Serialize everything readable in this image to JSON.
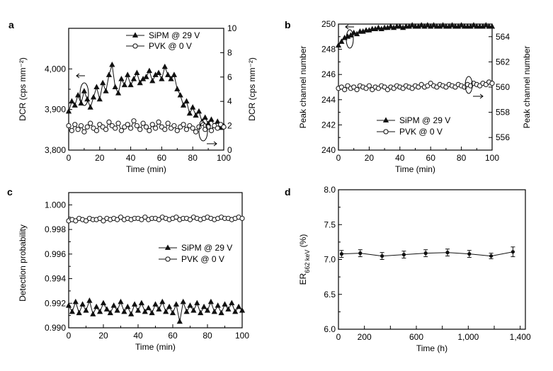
{
  "chart_data": [
    {
      "panel": "a",
      "type": "line",
      "xlabel": "Time (min)",
      "ylabel": "DCR (cps mm⁻²)",
      "ylabel_right": "DCR (cps mm⁻²)",
      "xlim": [
        0,
        100
      ],
      "ylim": [
        3800,
        4100
      ],
      "ylim_right": [
        0,
        10
      ],
      "xticks": [
        "0",
        "20",
        "40",
        "60",
        "80",
        "100"
      ],
      "yticks": [
        "3,800",
        "3,900",
        "4,000"
      ],
      "yticks_right": [
        "0",
        "2",
        "4",
        "6",
        "8",
        "10"
      ],
      "legend": [
        "SiPM @ 29 V",
        "PVK @ 0 V"
      ],
      "series": [
        {
          "name": "SiPM @ 29 V",
          "axis": "left",
          "marker": "triangle",
          "x": [
            0,
            2,
            4,
            6,
            8,
            10,
            12,
            14,
            16,
            18,
            20,
            22,
            24,
            26,
            28,
            30,
            32,
            34,
            36,
            38,
            40,
            42,
            44,
            46,
            48,
            50,
            52,
            54,
            56,
            58,
            60,
            62,
            64,
            66,
            68,
            70,
            72,
            74,
            76,
            78,
            80,
            82,
            84,
            86,
            88,
            90,
            92,
            94,
            96,
            98,
            100
          ],
          "y": [
            3895,
            3920,
            3910,
            3935,
            3915,
            3945,
            3925,
            3905,
            3930,
            3955,
            3925,
            3965,
            3945,
            3985,
            4010,
            3955,
            3940,
            3975,
            3960,
            3985,
            3960,
            3975,
            3990,
            3965,
            3975,
            3980,
            3995,
            3970,
            3985,
            3990,
            3975,
            4005,
            3985,
            3975,
            3985,
            3950,
            3935,
            3910,
            3920,
            3890,
            3905,
            3885,
            3895,
            3870,
            3880,
            3865,
            3875,
            3860,
            3870,
            3855,
            3860
          ]
        },
        {
          "name": "PVK @ 0 V",
          "axis": "right",
          "marker": "circle",
          "x": [
            0,
            2,
            4,
            6,
            8,
            10,
            12,
            14,
            16,
            18,
            20,
            22,
            24,
            26,
            28,
            30,
            32,
            34,
            36,
            38,
            40,
            42,
            44,
            46,
            48,
            50,
            52,
            54,
            56,
            58,
            60,
            62,
            64,
            66,
            68,
            70,
            72,
            74,
            76,
            78,
            80,
            82,
            84,
            86,
            88,
            90,
            92,
            94,
            96,
            98,
            100
          ],
          "y": [
            2.0,
            1.6,
            2.1,
            1.7,
            2.0,
            1.5,
            1.9,
            2.2,
            1.8,
            1.6,
            2.1,
            1.9,
            1.7,
            2.3,
            2.0,
            1.8,
            2.2,
            1.6,
            1.9,
            2.1,
            1.8,
            2.4,
            2.0,
            1.7,
            2.2,
            1.9,
            1.6,
            2.1,
            1.8,
            2.3,
            1.9,
            1.7,
            2.2,
            1.8,
            2.0,
            1.6,
            1.9,
            2.1,
            1.7,
            2.0,
            1.8,
            1.5,
            1.9,
            2.2,
            1.7,
            1.9,
            1.6,
            2.0,
            1.8,
            2.1,
            1.9
          ]
        }
      ]
    },
    {
      "panel": "b",
      "type": "line",
      "xlabel": "Time (min)",
      "ylabel": "Peak channel number",
      "ylabel_right": "Peak channel number",
      "xlim": [
        0,
        100
      ],
      "ylim": [
        240,
        250
      ],
      "ylim_right": [
        555,
        565
      ],
      "xticks": [
        "0",
        "20",
        "40",
        "60",
        "80",
        "100"
      ],
      "yticks": [
        "240",
        "242",
        "244",
        "246",
        "248",
        "250"
      ],
      "yticks_right": [
        "556",
        "558",
        "560",
        "562",
        "564"
      ],
      "legend": [
        "SiPM @ 29 V",
        "PVK @ 0 V"
      ],
      "series": [
        {
          "name": "SiPM @ 29 V",
          "axis": "left",
          "marker": "triangle",
          "x": [
            0,
            2,
            4,
            6,
            8,
            10,
            12,
            14,
            16,
            18,
            20,
            22,
            24,
            26,
            28,
            30,
            32,
            34,
            36,
            38,
            40,
            42,
            44,
            46,
            48,
            50,
            52,
            54,
            56,
            58,
            60,
            62,
            64,
            66,
            68,
            70,
            72,
            74,
            76,
            78,
            80,
            82,
            84,
            86,
            88,
            90,
            92,
            94,
            96,
            98,
            100
          ],
          "y": [
            248.3,
            248.6,
            248.9,
            249.0,
            249.1,
            249.3,
            249.2,
            249.4,
            249.4,
            249.5,
            249.5,
            249.6,
            249.6,
            249.7,
            249.6,
            249.7,
            249.7,
            249.8,
            249.7,
            249.8,
            249.8,
            249.7,
            249.8,
            249.8,
            249.9,
            249.8,
            249.8,
            249.9,
            249.8,
            249.9,
            249.8,
            249.9,
            249.8,
            249.8,
            249.9,
            249.8,
            249.8,
            249.9,
            249.8,
            249.8,
            249.9,
            249.8,
            249.8,
            249.8,
            249.9,
            249.8,
            249.8,
            249.8,
            249.9,
            249.8,
            249.8
          ]
        },
        {
          "name": "PVK @ 0 V",
          "axis": "right",
          "marker": "circle",
          "x": [
            0,
            2,
            4,
            6,
            8,
            10,
            12,
            14,
            16,
            18,
            20,
            22,
            24,
            26,
            28,
            30,
            32,
            34,
            36,
            38,
            40,
            42,
            44,
            46,
            48,
            50,
            52,
            54,
            56,
            58,
            60,
            62,
            64,
            66,
            68,
            70,
            72,
            74,
            76,
            78,
            80,
            82,
            84,
            86,
            88,
            90,
            92,
            94,
            96,
            98,
            100
          ],
          "y": [
            559.9,
            560.0,
            559.8,
            560.1,
            559.9,
            560.0,
            559.8,
            560.1,
            560.0,
            559.9,
            560.1,
            559.8,
            560.0,
            559.9,
            560.1,
            560.0,
            559.8,
            560.0,
            559.9,
            560.1,
            560.0,
            559.9,
            560.1,
            560.0,
            559.9,
            560.1,
            560.0,
            560.2,
            560.0,
            560.1,
            560.3,
            560.1,
            560.0,
            560.2,
            560.1,
            560.0,
            560.2,
            560.1,
            560.0,
            560.2,
            560.1,
            560.0,
            560.2,
            560.1,
            560.3,
            560.2,
            560.1,
            560.3,
            560.2,
            560.4,
            560.3
          ]
        }
      ]
    },
    {
      "panel": "c",
      "type": "line",
      "xlabel": "Time (min)",
      "ylabel": "Detection probability",
      "xlim": [
        0,
        100
      ],
      "ylim": [
        0.99,
        1.001
      ],
      "xticks": [
        "0",
        "20",
        "40",
        "60",
        "80",
        "100"
      ],
      "yticks": [
        "0.990",
        "0.992",
        "0.994",
        "0.996",
        "0.998",
        "1.000"
      ],
      "legend": [
        "SiPM @ 29 V",
        "PVK @ 0 V"
      ],
      "series": [
        {
          "name": "SiPM @ 29 V",
          "marker": "triangle",
          "x": [
            0,
            2,
            4,
            6,
            8,
            10,
            12,
            14,
            16,
            18,
            20,
            22,
            24,
            26,
            28,
            30,
            32,
            34,
            36,
            38,
            40,
            42,
            44,
            46,
            48,
            50,
            52,
            54,
            56,
            58,
            60,
            62,
            64,
            66,
            68,
            70,
            72,
            74,
            76,
            78,
            80,
            82,
            84,
            86,
            88,
            90,
            92,
            94,
            96,
            98,
            100
          ],
          "y": [
            0.9918,
            0.9913,
            0.9921,
            0.9912,
            0.9919,
            0.9914,
            0.9922,
            0.9911,
            0.9917,
            0.9913,
            0.992,
            0.9915,
            0.9912,
            0.9918,
            0.9914,
            0.9921,
            0.9913,
            0.9917,
            0.9911,
            0.9919,
            0.9914,
            0.992,
            0.9913,
            0.9916,
            0.9912,
            0.9919,
            0.9915,
            0.9921,
            0.9913,
            0.9917,
            0.9912,
            0.9919,
            0.9905,
            0.9921,
            0.9913,
            0.9918,
            0.9914,
            0.992,
            0.9912,
            0.9917,
            0.9914,
            0.9921,
            0.9913,
            0.9918,
            0.9912,
            0.9919,
            0.9915,
            0.992,
            0.9913,
            0.9917,
            0.9914
          ]
        },
        {
          "name": "PVK @ 0 V",
          "marker": "circle",
          "x": [
            0,
            2,
            4,
            6,
            8,
            10,
            12,
            14,
            16,
            18,
            20,
            22,
            24,
            26,
            28,
            30,
            32,
            34,
            36,
            38,
            40,
            42,
            44,
            46,
            48,
            50,
            52,
            54,
            56,
            58,
            60,
            62,
            64,
            66,
            68,
            70,
            72,
            74,
            76,
            78,
            80,
            82,
            84,
            86,
            88,
            90,
            92,
            94,
            96,
            98,
            100
          ],
          "y": [
            0.9987,
            0.9988,
            0.9987,
            0.9989,
            0.9988,
            0.9987,
            0.9989,
            0.9988,
            0.9988,
            0.9989,
            0.9987,
            0.9989,
            0.9988,
            0.9989,
            0.9988,
            0.999,
            0.9988,
            0.9989,
            0.9988,
            0.9989,
            0.9989,
            0.9988,
            0.999,
            0.9988,
            0.9989,
            0.9989,
            0.9988,
            0.999,
            0.9989,
            0.9988,
            0.9989,
            0.999,
            0.9988,
            0.9989,
            0.9989,
            0.9988,
            0.999,
            0.9989,
            0.9988,
            0.9989,
            0.999,
            0.9989,
            0.9988,
            0.9989,
            0.999,
            0.9989,
            0.9989,
            0.9988,
            0.9989,
            0.999,
            0.9989
          ]
        }
      ]
    },
    {
      "panel": "d",
      "type": "line",
      "xlabel": "Time (h)",
      "ylabel_main": "ER",
      "ylabel_sub": "662 keV",
      "ylabel_unit": " (%)",
      "xlim": [
        0,
        1440
      ],
      "ylim": [
        6.0,
        8.0
      ],
      "xticks": [
        "0",
        "200",
        "400",
        "600",
        "800",
        "1,000",
        "1,200",
        "1,400"
      ],
      "xticks_labeled": [
        "0",
        "200",
        "600",
        "1,000",
        "1,400"
      ],
      "yticks": [
        "6.0",
        "6.5",
        "7.0",
        "7.5",
        "8.0"
      ],
      "series": [
        {
          "name": "ER 662 keV",
          "marker": "circle",
          "x": [
            24,
            168,
            336,
            504,
            672,
            840,
            1008,
            1176,
            1344
          ],
          "y": [
            7.08,
            7.09,
            7.05,
            7.07,
            7.09,
            7.1,
            7.08,
            7.05,
            7.11
          ],
          "err": [
            0.05,
            0.05,
            0.05,
            0.05,
            0.05,
            0.05,
            0.05,
            0.04,
            0.07
          ]
        }
      ]
    }
  ]
}
